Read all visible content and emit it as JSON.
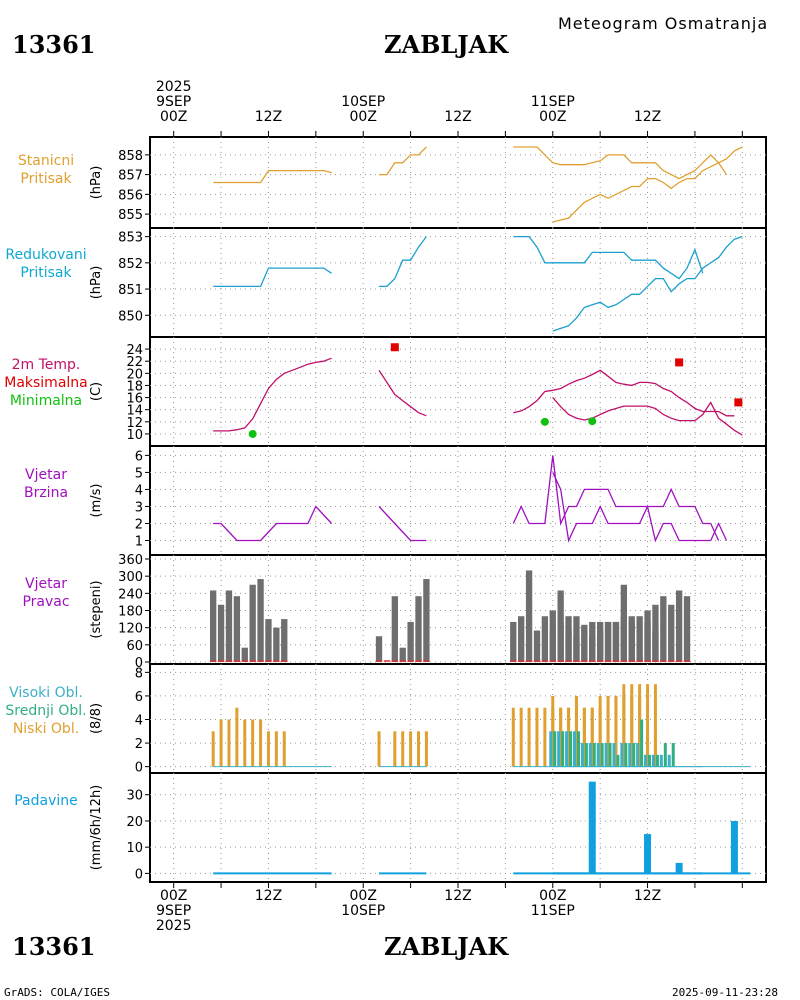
{
  "header": {
    "station_id": "13361",
    "station_name": "ZABLJAK",
    "title": "Meteogram Osmatranja",
    "footer_left": "GrADS: COLA/IGES",
    "footer_right": "2025-09-11-23:28"
  },
  "time_axis": {
    "top_labels": [
      {
        "line1": "2025",
        "line2": "9SEP",
        "line3": "00Z",
        "hour": 0
      },
      {
        "line1": "",
        "line2": "",
        "line3": "12Z",
        "hour": 12
      },
      {
        "line1": "",
        "line2": "10SEP",
        "line3": "00Z",
        "hour": 24
      },
      {
        "line1": "",
        "line2": "",
        "line3": "12Z",
        "hour": 36
      },
      {
        "line1": "",
        "line2": "11SEP",
        "line3": "00Z",
        "hour": 48
      },
      {
        "line1": "",
        "line2": "",
        "line3": "12Z",
        "hour": 60
      }
    ],
    "bottom_labels": [
      {
        "line1": "00Z",
        "line2": "9SEP",
        "line3": "2025",
        "hour": 0
      },
      {
        "line1": "12Z",
        "line2": "",
        "line3": "",
        "hour": 12
      },
      {
        "line1": "00Z",
        "line2": "10SEP",
        "line3": "",
        "hour": 24
      },
      {
        "line1": "12Z",
        "line2": "",
        "line3": "",
        "hour": 36
      },
      {
        "line1": "00Z",
        "line2": "11SEP",
        "line3": "",
        "hour": 48
      },
      {
        "line1": "12Z",
        "line2": "",
        "line3": "",
        "hour": 60
      }
    ]
  },
  "colors": {
    "pressure_station": "#e0a030",
    "pressure_reduced": "#1aa0d0",
    "temperature": "#c0106a",
    "tmax": "#e00000",
    "tmin": "#10c010",
    "wind_speed": "#a010c0",
    "wind_dir": "#6e6e6e",
    "cloud_high": "#3cb0c8",
    "cloud_mid": "#30b080",
    "cloud_low": "#e0a030",
    "precip": "#10a0e0",
    "text_station_pressure": "#e0a030",
    "text_reduced_pressure": "#10a8d0"
  },
  "panels": [
    {
      "id": "station-pressure",
      "title_lines": [
        "Stanicni",
        "Pritisak"
      ],
      "unit": "(hPa)"
    },
    {
      "id": "reduced-pressure",
      "title_lines": [
        "Redukovani",
        "Pritisak"
      ],
      "unit": "(hPa)"
    },
    {
      "id": "temperature",
      "title_lines": [
        "2m Temp.",
        "Maksimalna",
        "Minimalna"
      ],
      "unit": "(C)"
    },
    {
      "id": "wind-speed",
      "title_lines": [
        "Vjetar",
        "Brzina"
      ],
      "unit": "(m/s)"
    },
    {
      "id": "wind-direction",
      "title_lines": [
        "Vjetar",
        "Pravac"
      ],
      "unit": "(stepeni)"
    },
    {
      "id": "clouds",
      "title_lines": [
        "Visoki Obl.",
        "Srednji Obl.",
        "Niski Obl."
      ],
      "unit": "(8/8)"
    },
    {
      "id": "precipitation",
      "title_lines": [
        "Padavine"
      ],
      "unit": "(mm/6h/12h)"
    }
  ],
  "chart_data": [
    {
      "type": "line",
      "title": "Stanicni Pritisak",
      "ylabel": "(hPa)",
      "ylim": [
        854.6,
        858.6
      ],
      "yticks": [
        855,
        856,
        857,
        858
      ],
      "segments": [
        {
          "x": [
            5,
            6,
            7,
            8,
            9,
            10,
            11,
            12,
            13,
            14,
            15,
            16,
            17,
            18,
            19,
            20
          ],
          "y": [
            856.6,
            856.6,
            856.6,
            856.6,
            856.6,
            856.6,
            856.6,
            857.2,
            857.2,
            857.2,
            857.2,
            857.2,
            857.2,
            857.2,
            857.2,
            857.1
          ]
        },
        {
          "x": [
            26,
            27,
            28,
            29,
            30,
            31,
            32
          ],
          "y": [
            857.0,
            857.0,
            857.6,
            857.6,
            858.0,
            858.0,
            858.4
          ]
        },
        {
          "x": [
            43,
            44,
            45,
            46,
            47,
            48,
            49,
            50,
            51,
            52,
            53,
            54,
            55,
            56,
            57,
            58,
            59,
            60,
            61,
            62,
            63,
            64,
            65,
            66,
            67,
            68,
            69,
            70,
            71,
            72,
            73
          ],
          "y": [
            858.4,
            858.4,
            858.4,
            858.4,
            858.0,
            857.6,
            857.5,
            857.5,
            857.5,
            857.5,
            857.6,
            857.7,
            858.0,
            858.0,
            858.0,
            857.6,
            857.6,
            857.6,
            857.6,
            857.2,
            857.0,
            856.8,
            857.0,
            857.2,
            857.6,
            858.0,
            857.6,
            857.0,
            null,
            null,
            null
          ]
        },
        {
          "x": [
            48,
            49,
            50,
            51,
            52,
            53,
            54,
            55,
            56,
            57,
            58,
            59,
            60,
            61,
            62,
            63,
            64,
            65,
            66,
            67,
            68,
            69,
            70,
            71,
            72
          ],
          "y": [
            854.6,
            854.7,
            854.8,
            855.2,
            855.6,
            855.8,
            856.0,
            855.8,
            856.0,
            856.2,
            856.4,
            856.4,
            856.8,
            856.8,
            856.6,
            856.3,
            856.6,
            856.8,
            856.8,
            857.2,
            857.4,
            857.6,
            857.8,
            858.2,
            858.4
          ]
        }
      ]
    },
    {
      "type": "line",
      "title": "Redukovani Pritisak",
      "ylabel": "(hPa)",
      "ylim": [
        849.4,
        853.1
      ],
      "yticks": [
        850,
        851,
        852,
        853
      ],
      "segments": [
        {
          "x": [
            5,
            6,
            7,
            8,
            9,
            10,
            11,
            12,
            13,
            14,
            15,
            16,
            17,
            18,
            19,
            20
          ],
          "y": [
            851.1,
            851.1,
            851.1,
            851.1,
            851.1,
            851.1,
            851.1,
            851.8,
            851.8,
            851.8,
            851.8,
            851.8,
            851.8,
            851.8,
            851.8,
            851.6
          ]
        },
        {
          "x": [
            26,
            27,
            28,
            29,
            30,
            31,
            32
          ],
          "y": [
            851.1,
            851.1,
            851.4,
            852.1,
            852.1,
            852.6,
            853.0
          ]
        }
      ]
    },
    {
      "type": "line",
      "title": "2m Temp. Maksimalna Minimalna",
      "ylabel": "(C)",
      "ylim": [
        9,
        25
      ],
      "yticks": [
        10,
        12,
        14,
        16,
        18,
        20,
        22,
        24
      ],
      "series": [
        {
          "name": "2m Temp.",
          "segments": [
            {
              "x": [
                5,
                6,
                7,
                8,
                9,
                10,
                11,
                12,
                13,
                14,
                15,
                16,
                17,
                18,
                19,
                20
              ],
              "y": [
                10.5,
                10.5,
                10.5,
                10.7,
                11,
                12.5,
                15,
                17.5,
                19,
                20,
                20.5,
                21,
                21.5,
                21.8,
                22,
                22.5
              ]
            },
            {
              "x": [
                26,
                27,
                28,
                29,
                30,
                31,
                32
              ],
              "y": [
                20.5,
                18.5,
                16.5,
                15.5,
                14.5,
                13.5,
                13
              ]
            },
            {
              "x": [
                43,
                44,
                45,
                46,
                47,
                48,
                49,
                50,
                51,
                52,
                53,
                54,
                55,
                56,
                57,
                58,
                59,
                60,
                61,
                62,
                63,
                64,
                65,
                66,
                67,
                68,
                69,
                70,
                71,
                72,
                73
              ],
              "y": [
                13.5,
                13.8,
                14.5,
                15.5,
                17,
                17.2,
                17.5,
                18.2,
                18.8,
                19.2,
                19.8,
                20.5,
                19.5,
                18.5,
                18.2,
                18,
                18.5,
                18.5,
                18.3,
                17.5,
                17,
                16,
                15.2,
                14.2,
                13.7,
                13.7,
                13.7,
                13,
                13,
                null,
                null
              ]
            }
          ]
        },
        {
          "name": "Maksimalna",
          "points": [
            {
              "x": 28,
              "y": 24.3
            },
            {
              "x": 64,
              "y": 21.8
            },
            {
              "x": 71.5,
              "y": 15.2
            }
          ]
        },
        {
          "name": "Minimalna",
          "points": [
            {
              "x": 10,
              "y": 10
            },
            {
              "x": 47,
              "y": 12
            },
            {
              "x": 53,
              "y": 12.1
            }
          ]
        }
      ]
    },
    {
      "type": "line",
      "title": "Vjetar Brzina",
      "ylabel": "(m/s)",
      "ylim": [
        0.5,
        6.2
      ],
      "yticks": [
        1,
        2,
        3,
        4,
        5,
        6
      ],
      "segments": [
        {
          "x": [
            5,
            6,
            7,
            8,
            9,
            10,
            11,
            12,
            13,
            14,
            15,
            16,
            17,
            18,
            19,
            20
          ],
          "y": [
            2,
            2,
            1.5,
            1,
            1,
            1,
            1,
            1.5,
            2,
            2,
            2,
            2,
            2,
            3,
            2.5,
            2
          ]
        },
        {
          "x": [
            26,
            27,
            28,
            29,
            30,
            31,
            32
          ],
          "y": [
            3,
            2.5,
            2,
            1.5,
            1,
            1,
            1
          ]
        }
      ]
    },
    {
      "type": "bar",
      "title": "Vjetar Pravac",
      "ylabel": "(stepeni)",
      "ylim": [
        0,
        360
      ],
      "yticks": [
        0,
        60,
        120,
        180,
        240,
        300,
        360
      ],
      "segments": []
    },
    {
      "type": "bar",
      "title": "Visoki Obl. Srednji Obl. Niski Obl.",
      "ylabel": "(8/8)",
      "ylim": [
        -0.2,
        8.2
      ],
      "yticks": [
        0,
        2,
        4,
        6,
        8
      ]
    },
    {
      "type": "bar",
      "title": "Padavine",
      "ylabel": "(mm/6h/12h)",
      "ylim": [
        -1,
        36
      ],
      "yticks": [
        0,
        10,
        20,
        30
      ]
    }
  ],
  "series_hours": {
    "day1_hours": [
      5,
      6,
      7,
      8,
      9,
      10,
      11,
      12,
      13,
      14,
      15,
      16,
      17,
      18,
      19,
      20
    ],
    "day1b_hours": [
      26,
      27,
      28,
      29,
      30,
      31,
      32
    ],
    "day2_hours": [
      43,
      44,
      45,
      46,
      47,
      48,
      49,
      50,
      51,
      52,
      53,
      54,
      55,
      56,
      57,
      58,
      59,
      60,
      61,
      62,
      63,
      64,
      65,
      66,
      67
    ],
    "day3_hours": [
      48,
      49,
      50,
      51,
      52,
      53,
      54,
      55,
      56,
      57,
      58,
      59,
      60,
      61,
      62,
      63,
      64,
      65,
      66,
      67,
      68,
      69,
      70,
      71,
      72
    ]
  },
  "raw": {
    "reduced_day2": [
      853.0,
      853.0,
      853.0,
      852.6,
      852.0,
      852.0,
      852.0,
      852.0,
      852.0,
      852.0,
      852.4,
      852.4,
      852.4,
      852.4,
      852.4,
      852.1,
      852.1,
      852.1,
      852.1,
      851.8,
      851.6,
      851.4,
      851.8,
      852.5,
      851.6
    ],
    "reduced_day3": [
      849.4,
      849.5,
      849.6,
      849.9,
      850.3,
      850.4,
      850.5,
      850.3,
      850.4,
      850.6,
      850.8,
      850.8,
      851.1,
      851.4,
      851.4,
      850.9,
      851.2,
      851.4,
      851.4,
      851.8,
      852.0,
      852.2,
      852.6,
      852.9,
      853.0
    ],
    "temp_day3": [
      16,
      14.5,
      13.2,
      12.6,
      12.3,
      12.6,
      13.2,
      13.8,
      14.2,
      14.6,
      14.6,
      14.6,
      14.6,
      14.2,
      13.2,
      12.6,
      12.2,
      12.2,
      12.2,
      13.2,
      15.2,
      12.6,
      11.6,
      10.6,
      9.8
    ],
    "wind_day2": [
      2,
      3,
      2,
      2,
      2,
      6,
      2,
      3,
      3,
      4,
      4,
      4,
      4,
      3,
      3,
      3,
      3,
      3,
      3,
      3,
      4,
      3,
      3,
      3,
      2,
      2,
      1
    ],
    "wind_day3": [
      5,
      4,
      1,
      2,
      2,
      2,
      3,
      2,
      2,
      2,
      2,
      2,
      3,
      1,
      2,
      2,
      1,
      1,
      1,
      1,
      1,
      2,
      1
    ]
  },
  "wind_dir": {
    "day1": [
      250,
      200,
      250,
      230,
      50,
      270,
      290,
      150,
      120,
      150
    ],
    "day1b": [
      90,
      0,
      230,
      50,
      140,
      230,
      290
    ],
    "day2": [
      140,
      160,
      320,
      110,
      160,
      110,
      140,
      160,
      160,
      120,
      140,
      140,
      140,
      140,
      160,
      160,
      160,
      140,
      110
    ],
    "day3": [
      180,
      250,
      110,
      90,
      130,
      90,
      110,
      140,
      140,
      270,
      140,
      20,
      180,
      200,
      230,
      200,
      250,
      230
    ]
  },
  "clouds": {
    "low_day1": [
      3,
      4,
      4,
      5,
      4,
      4,
      4,
      3,
      3,
      3
    ],
    "low_day1b": [
      3,
      0,
      3,
      3,
      3,
      3,
      3
    ],
    "low_day2": [
      5,
      5,
      5,
      5,
      5,
      6,
      5,
      5,
      5,
      5,
      5,
      6,
      6,
      6,
      7,
      7,
      7,
      7,
      7
    ],
    "low_day3": [
      5,
      5,
      5,
      6,
      5,
      5,
      5,
      5,
      6,
      6,
      6,
      6,
      3,
      3
    ],
    "mid_day3": [
      3,
      3,
      3,
      3,
      2,
      2,
      2,
      2,
      1,
      2,
      2,
      4,
      1,
      1,
      2,
      2
    ],
    "high_day3": [
      3,
      3,
      3,
      3,
      2,
      2,
      2,
      2,
      2,
      2,
      2,
      2,
      1,
      1,
      1,
      1
    ]
  },
  "precip": {
    "day3_big": [
      {
        "x": 53,
        "y": 35
      },
      {
        "x": 60,
        "y": 15
      },
      {
        "x": 71,
        "y": 20
      }
    ],
    "day2_small": [
      {
        "x": 64,
        "y": 4
      }
    ]
  },
  "labels": {
    "top_year": "2025",
    "bottom_year": "2025"
  }
}
